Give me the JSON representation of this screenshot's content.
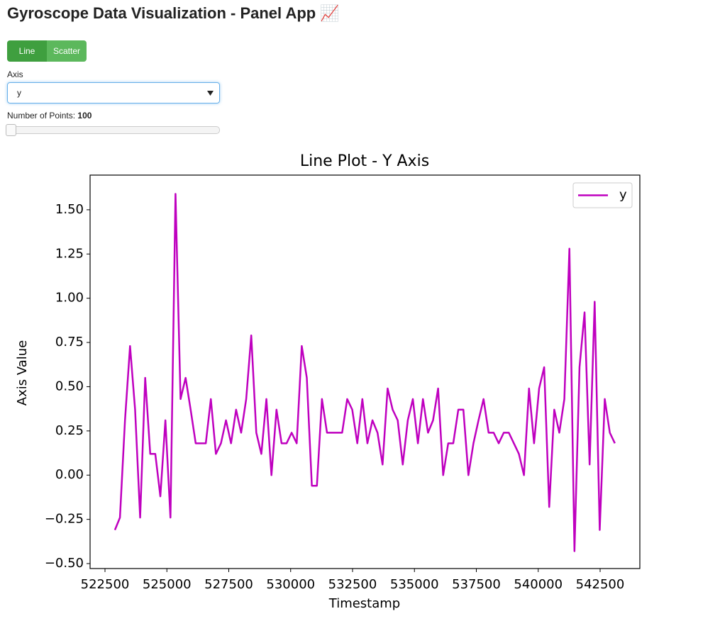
{
  "header": {
    "title": "Gyroscope Data Visualization - Panel App 📈"
  },
  "controls": {
    "plot_type": {
      "options": [
        "Line",
        "Scatter"
      ]
    },
    "axis_select": {
      "label": "Axis",
      "value": "y"
    },
    "points_slider": {
      "label": "Number of Points:",
      "value": 100
    }
  },
  "chart_data": {
    "type": "line",
    "title": "Line Plot - Y Axis",
    "x_label": "Timestamp",
    "y_label": "Axis Value",
    "x": [
      522900,
      523104,
      523308,
      523512,
      523716,
      523920,
      524124,
      524328,
      524532,
      524736,
      524940,
      525144,
      525348,
      525552,
      525756,
      525960,
      526164,
      526368,
      526572,
      526776,
      526980,
      527184,
      527388,
      527592,
      527796,
      528000,
      528204,
      528408,
      528612,
      528816,
      529020,
      529224,
      529428,
      529632,
      529836,
      530040,
      530244,
      530448,
      530652,
      530856,
      531060,
      531264,
      531468,
      531672,
      531876,
      532080,
      532284,
      532488,
      532692,
      532896,
      533100,
      533304,
      533508,
      533712,
      533916,
      534120,
      534324,
      534528,
      534732,
      534936,
      535140,
      535344,
      535548,
      535752,
      535956,
      536160,
      536364,
      536568,
      536772,
      536976,
      537180,
      537384,
      537588,
      537792,
      537996,
      538200,
      538404,
      538608,
      538812,
      539016,
      539220,
      539424,
      539628,
      539832,
      540036,
      540240,
      540444,
      540648,
      540852,
      541056,
      541260,
      541464,
      541668,
      541872,
      542076,
      542280,
      542484,
      542688,
      542892,
      543096
    ],
    "series": [
      {
        "name": "y",
        "color": "#bf00bf",
        "values": [
          -0.31,
          -0.24,
          0.31,
          0.73,
          0.37,
          -0.24,
          0.55,
          0.12,
          0.12,
          -0.12,
          0.31,
          -0.24,
          1.59,
          0.43,
          0.55,
          0.37,
          0.18,
          0.18,
          0.18,
          0.43,
          0.12,
          0.18,
          0.31,
          0.18,
          0.37,
          0.24,
          0.43,
          0.79,
          0.24,
          0.12,
          0.43,
          0.0,
          0.37,
          0.18,
          0.18,
          0.24,
          0.18,
          0.73,
          0.55,
          -0.06,
          -0.06,
          0.43,
          0.24,
          0.24,
          0.24,
          0.24,
          0.43,
          0.37,
          0.18,
          0.43,
          0.18,
          0.31,
          0.24,
          0.06,
          0.49,
          0.37,
          0.31,
          0.06,
          0.31,
          0.43,
          0.18,
          0.43,
          0.24,
          0.31,
          0.49,
          0.0,
          0.18,
          0.18,
          0.37,
          0.37,
          0.0,
          0.18,
          0.31,
          0.43,
          0.24,
          0.24,
          0.18,
          0.24,
          0.24,
          0.18,
          0.12,
          0.0,
          0.49,
          0.18,
          0.49,
          0.61,
          -0.18,
          0.37,
          0.24,
          0.43,
          1.28,
          -0.43,
          0.61,
          0.92,
          0.06,
          0.98,
          -0.31,
          0.43,
          0.24,
          0.18
        ]
      }
    ],
    "xlim": [
      521898,
      544105
    ],
    "ylim": [
      -0.528,
      1.696
    ],
    "xticks": [
      522500,
      525000,
      527500,
      530000,
      532500,
      535000,
      537500,
      540000,
      542500
    ],
    "yticks": [
      {
        "value": -0.5,
        "label": "−0.50"
      },
      {
        "value": -0.25,
        "label": "−0.25"
      },
      {
        "value": 0,
        "label": "0.00"
      },
      {
        "value": 0.25,
        "label": "0.25"
      },
      {
        "value": 0.5,
        "label": "0.50"
      },
      {
        "value": 0.75,
        "label": "0.75"
      },
      {
        "value": 1,
        "label": "1.00"
      },
      {
        "value": 1.25,
        "label": "1.25"
      },
      {
        "value": 1.5,
        "label": "1.50"
      }
    ],
    "legend": "upper right"
  }
}
